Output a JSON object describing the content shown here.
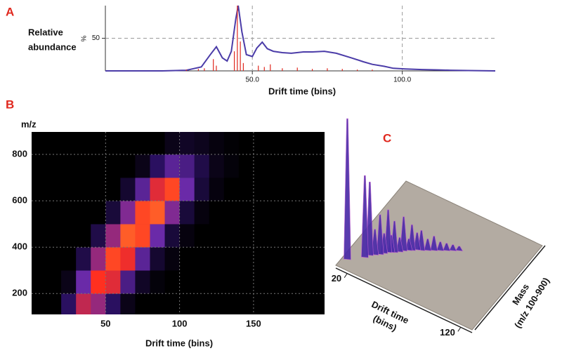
{
  "chart_data": [
    {
      "panel": "A",
      "type": "line",
      "ylabel": [
        "Relative",
        "abundance"
      ],
      "yunit": "%",
      "xlabel": "Drift time (bins)",
      "xlim": [
        1,
        131
      ],
      "ylim": [
        0,
        100
      ],
      "xticks": [
        {
          "value": 50,
          "label": "50.0"
        },
        {
          "value": 100,
          "label": "100.0"
        }
      ],
      "yticks": [
        50
      ],
      "grid": true,
      "series": [
        {
          "type": "line",
          "color": "#4b3ca8",
          "x": [
            1,
            20,
            28,
            30,
            33,
            36,
            38,
            40,
            41.6,
            43,
            44.5,
            45.3,
            46.5,
            48,
            50,
            51.5,
            53.3,
            55,
            57,
            60,
            63,
            67,
            70,
            74,
            78,
            83,
            87,
            90,
            94,
            97,
            101,
            106.5,
            112,
            116,
            122,
            131
          ],
          "values": [
            0,
            0,
            1,
            3,
            6,
            25,
            37,
            20,
            15,
            30,
            80,
            100,
            60,
            25,
            22,
            35,
            44,
            34,
            30,
            28,
            27,
            29,
            29,
            30,
            27,
            20,
            14,
            10,
            7,
            4,
            3,
            2,
            1.5,
            1,
            0.5,
            0
          ]
        },
        {
          "type": "stem",
          "color": "#e0281e",
          "x": [
            28,
            32,
            34,
            37,
            38,
            44,
            45,
            46,
            47,
            52,
            54,
            56,
            60,
            65,
            70,
            75,
            80,
            85,
            90
          ],
          "values": [
            2,
            3,
            4,
            18,
            8,
            30,
            100,
            45,
            12,
            8,
            6,
            10,
            4,
            5,
            3,
            4,
            3,
            2,
            2
          ]
        }
      ]
    },
    {
      "panel": "B",
      "type": "heatmap",
      "ylabel": "m/z",
      "xlabel": "Drift time (bins)",
      "xlim": [
        0,
        198
      ],
      "ylim": [
        110,
        897
      ],
      "xticks": [
        50,
        100,
        150
      ],
      "yticks": [
        200,
        400,
        600,
        800
      ],
      "grid": true,
      "zlim": [
        0,
        100
      ],
      "colorscale": [
        "#000000",
        "#2a1060",
        "#6a2aa8",
        "#c02850",
        "#ff3020",
        "#ff8a30"
      ],
      "x_edges": [
        0,
        10,
        20,
        30,
        40,
        50,
        60,
        70,
        80,
        90,
        100,
        110,
        120,
        130,
        140,
        150,
        160,
        170,
        180,
        190,
        200
      ],
      "y_edges": [
        100,
        200,
        300,
        400,
        500,
        600,
        700,
        800,
        900
      ],
      "values": [
        [
          0,
          0,
          20,
          60,
          50,
          20,
          5,
          0,
          0,
          0,
          0,
          0,
          0,
          0,
          0,
          0,
          0,
          0,
          0,
          0
        ],
        [
          0,
          0,
          5,
          40,
          80,
          70,
          30,
          8,
          2,
          0,
          0,
          0,
          0,
          0,
          0,
          0,
          0,
          0,
          0,
          0
        ],
        [
          0,
          0,
          0,
          15,
          50,
          85,
          75,
          35,
          10,
          3,
          0,
          0,
          0,
          0,
          0,
          0,
          0,
          0,
          0,
          0
        ],
        [
          0,
          0,
          0,
          0,
          15,
          50,
          90,
          85,
          40,
          12,
          3,
          0,
          0,
          0,
          0,
          0,
          0,
          0,
          0,
          0
        ],
        [
          0,
          0,
          0,
          0,
          0,
          12,
          45,
          85,
          90,
          45,
          12,
          3,
          0,
          0,
          0,
          0,
          0,
          0,
          0,
          0
        ],
        [
          0,
          0,
          0,
          0,
          0,
          0,
          10,
          35,
          70,
          85,
          40,
          12,
          3,
          0,
          0,
          0,
          0,
          0,
          0,
          0
        ],
        [
          0,
          0,
          0,
          0,
          0,
          0,
          0,
          5,
          20,
          35,
          30,
          15,
          5,
          2,
          0,
          0,
          0,
          0,
          0,
          0
        ],
        [
          0,
          0,
          0,
          0,
          0,
          0,
          0,
          0,
          0,
          5,
          8,
          6,
          3,
          1,
          0,
          0,
          0,
          0,
          0,
          0
        ]
      ]
    },
    {
      "panel": "C",
      "type": "surface3d",
      "xlabel": [
        "Drift time",
        "(bins)"
      ],
      "zlabel": [
        "Mass",
        "(m/z 100-900)"
      ],
      "xlim": [
        10,
        130
      ],
      "xticks": [
        20,
        120
      ],
      "zlim": [
        100,
        900
      ],
      "ylim": [
        0,
        100
      ],
      "color": "#4b2ca8",
      "plane_color": "#b3aba2",
      "x": [
        14,
        24,
        26,
        29,
        32,
        34,
        36,
        38,
        40,
        43,
        45,
        48,
        50,
        53,
        56,
        60,
        64,
        68,
        72,
        76,
        80
      ],
      "mass": [
        180,
        250,
        280,
        300,
        320,
        340,
        360,
        370,
        380,
        400,
        420,
        440,
        450,
        470,
        480,
        500,
        520,
        540,
        560,
        580,
        600
      ],
      "values": [
        100,
        58,
        52,
        18,
        28,
        14,
        30,
        12,
        22,
        10,
        24,
        8,
        18,
        12,
        14,
        8,
        10,
        6,
        5,
        4,
        3
      ]
    }
  ]
}
